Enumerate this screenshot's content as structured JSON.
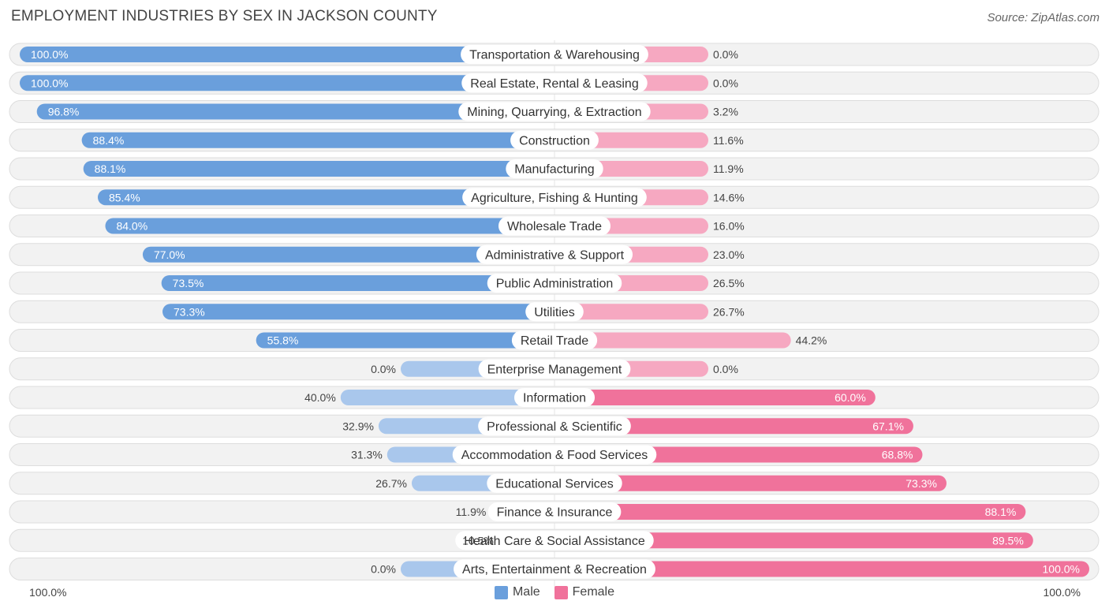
{
  "header": {
    "title": "EMPLOYMENT INDUSTRIES BY SEX IN JACKSON COUNTY",
    "source": "Source: ZipAtlas.com"
  },
  "axis": {
    "left_label": "100.0%",
    "right_label": "100.0%"
  },
  "legend": {
    "male_label": "Male",
    "female_label": "Female"
  },
  "colors": {
    "male_strong": "#6a9fdc",
    "male_light": "#a9c7ec",
    "female_strong": "#f0729b",
    "female_light": "#f6a8c1",
    "row_bg": "#f2f2f2",
    "row_border": "#dddddd"
  },
  "chart_data": {
    "type": "bar",
    "orientation": "diverging-horizontal",
    "title": "EMPLOYMENT INDUSTRIES BY SEX IN JACKSON COUNTY",
    "xlim": [
      -100,
      100
    ],
    "series": [
      {
        "name": "Male",
        "values": [
          100.0,
          100.0,
          96.8,
          88.4,
          88.1,
          85.4,
          84.0,
          77.0,
          73.5,
          73.3,
          55.8,
          0.0,
          40.0,
          32.9,
          31.3,
          26.7,
          11.9,
          10.5,
          0.0
        ]
      },
      {
        "name": "Female",
        "values": [
          0.0,
          0.0,
          3.2,
          11.6,
          11.9,
          14.6,
          16.0,
          23.0,
          26.5,
          26.7,
          44.2,
          0.0,
          60.0,
          67.1,
          68.8,
          73.3,
          88.1,
          89.5,
          100.0
        ]
      }
    ],
    "categories": [
      "Transportation & Warehousing",
      "Real Estate, Rental & Leasing",
      "Mining, Quarrying, & Extraction",
      "Construction",
      "Manufacturing",
      "Agriculture, Fishing & Hunting",
      "Wholesale Trade",
      "Administrative & Support",
      "Public Administration",
      "Utilities",
      "Retail Trade",
      "Enterprise Management",
      "Information",
      "Professional & Scientific",
      "Accommodation & Food Services",
      "Educational Services",
      "Finance & Insurance",
      "Health Care & Social Assistance",
      "Arts, Entertainment & Recreation"
    ],
    "male_labels": [
      "100.0%",
      "100.0%",
      "96.8%",
      "88.4%",
      "88.1%",
      "85.4%",
      "84.0%",
      "77.0%",
      "73.5%",
      "73.3%",
      "55.8%",
      "0.0%",
      "40.0%",
      "32.9%",
      "31.3%",
      "26.7%",
      "11.9%",
      "10.5%",
      "0.0%"
    ],
    "female_labels": [
      "0.0%",
      "0.0%",
      "3.2%",
      "11.6%",
      "11.9%",
      "14.6%",
      "16.0%",
      "23.0%",
      "26.5%",
      "26.7%",
      "44.2%",
      "0.0%",
      "60.0%",
      "67.1%",
      "68.8%",
      "73.3%",
      "88.1%",
      "89.5%",
      "100.0%"
    ]
  }
}
